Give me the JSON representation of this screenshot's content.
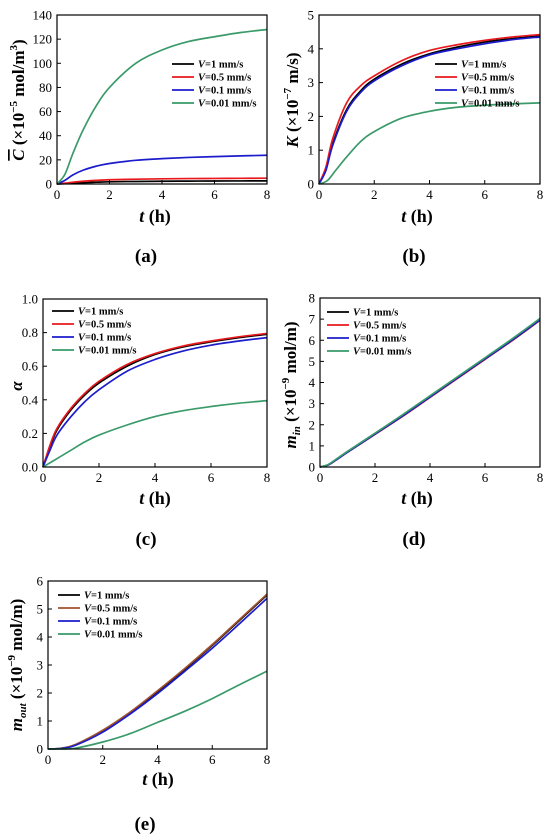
{
  "chart_data": [
    {
      "id": "a",
      "type": "line",
      "panel_label": "(a)",
      "xlabel": "t (h)",
      "ylabel": "C (×10⁻⁵ mol/m³)",
      "xlim": [
        0,
        8
      ],
      "ylim": [
        0,
        140
      ],
      "xticks": [
        "0",
        "2",
        "4",
        "6",
        "8"
      ],
      "yticks": [
        "0",
        "20",
        "40",
        "60",
        "80",
        "100",
        "120",
        "140"
      ],
      "legend": "top-right",
      "series": [
        {
          "name": "V=1 mm/s",
          "color": "#000000",
          "x": [
            0,
            0.3,
            0.6,
            1,
            1.5,
            2,
            3,
            4,
            5,
            6,
            7,
            8
          ],
          "y": [
            0,
            0.3,
            0.7,
            1.1,
            1.5,
            1.8,
            2.1,
            2.3,
            2.4,
            2.5,
            2.55,
            2.6
          ]
        },
        {
          "name": "V=0.5 mm/s",
          "color": "#e8191d",
          "x": [
            0,
            0.3,
            0.6,
            1,
            1.5,
            2,
            3,
            4,
            5,
            6,
            7,
            8
          ],
          "y": [
            0,
            0.6,
            1.5,
            2.3,
            3.0,
            3.5,
            4.0,
            4.3,
            4.5,
            4.6,
            4.7,
            4.8
          ]
        },
        {
          "name": "V=0.1 mm/s",
          "color": "#1c1ccc",
          "x": [
            0,
            0.3,
            0.6,
            1,
            1.5,
            2,
            3,
            4,
            5,
            6,
            7,
            8
          ],
          "y": [
            0,
            3,
            7.5,
            11.5,
            14.8,
            17.0,
            19.6,
            21.0,
            22.0,
            22.7,
            23.3,
            23.8
          ]
        },
        {
          "name": "V=0.01 mm/s",
          "color": "#3a9a6a",
          "x": [
            0,
            0.3,
            0.6,
            1,
            1.5,
            2,
            3,
            4,
            5,
            6,
            7,
            8
          ],
          "y": [
            0,
            8,
            25,
            45,
            65,
            80,
            100,
            111,
            118,
            122,
            125.5,
            128
          ]
        }
      ]
    },
    {
      "id": "b",
      "type": "line",
      "panel_label": "(b)",
      "xlabel": "t (h)",
      "ylabel": "K (×10⁻⁷ m/s)",
      "xlim": [
        0,
        8
      ],
      "ylim": [
        0,
        5
      ],
      "xticks": [
        "0",
        "2",
        "4",
        "6",
        "8"
      ],
      "yticks": [
        "0",
        "1",
        "2",
        "3",
        "4",
        "5"
      ],
      "legend": "right",
      "series": [
        {
          "name": "V=1 mm/s",
          "color": "#000000",
          "x": [
            0,
            0.25,
            0.5,
            1,
            1.5,
            2,
            3,
            4,
            5,
            6,
            7,
            8
          ],
          "y": [
            0,
            0.45,
            1.2,
            2.2,
            2.75,
            3.1,
            3.55,
            3.85,
            4.05,
            4.2,
            4.3,
            4.38
          ]
        },
        {
          "name": "V=0.5 mm/s",
          "color": "#e8191d",
          "x": [
            0,
            0.25,
            0.5,
            1,
            1.5,
            2,
            3,
            4,
            5,
            6,
            7,
            8
          ],
          "y": [
            0,
            0.5,
            1.35,
            2.4,
            2.9,
            3.2,
            3.65,
            3.95,
            4.12,
            4.25,
            4.35,
            4.42
          ]
        },
        {
          "name": "V=0.1 mm/s",
          "color": "#1c1ccc",
          "x": [
            0,
            0.25,
            0.5,
            1,
            1.5,
            2,
            3,
            4,
            5,
            6,
            7,
            8
          ],
          "y": [
            0,
            0.4,
            1.15,
            2.15,
            2.7,
            3.05,
            3.5,
            3.82,
            4.0,
            4.15,
            4.27,
            4.35
          ]
        },
        {
          "name": "V=0.01 mm/s",
          "color": "#3a9a6a",
          "x": [
            0,
            0.3,
            0.6,
            1,
            1.5,
            2,
            3,
            4,
            5,
            6,
            7,
            8
          ],
          "y": [
            0,
            0.1,
            0.4,
            0.8,
            1.25,
            1.55,
            1.95,
            2.15,
            2.27,
            2.33,
            2.37,
            2.4
          ]
        }
      ]
    },
    {
      "id": "c",
      "type": "line",
      "panel_label": "(c)",
      "xlabel": "t (h)",
      "ylabel": "α",
      "xlim": [
        0,
        8
      ],
      "ylim": [
        0,
        1.0
      ],
      "xticks": [
        "0",
        "2",
        "4",
        "6",
        "8"
      ],
      "yticks": [
        "0.0",
        "0.2",
        "0.4",
        "0.6",
        "0.8",
        "1.0"
      ],
      "legend": "top-left",
      "series": [
        {
          "name": "V=1 mm/s",
          "color": "#000000",
          "x": [
            0,
            0.25,
            0.5,
            1,
            1.5,
            2,
            3,
            4,
            5,
            6,
            7,
            8
          ],
          "y": [
            0,
            0.12,
            0.22,
            0.34,
            0.43,
            0.5,
            0.6,
            0.67,
            0.715,
            0.745,
            0.77,
            0.79
          ]
        },
        {
          "name": "V=0.5 mm/s",
          "color": "#e8191d",
          "x": [
            0,
            0.25,
            0.5,
            1,
            1.5,
            2,
            3,
            4,
            5,
            6,
            7,
            8
          ],
          "y": [
            0,
            0.13,
            0.23,
            0.35,
            0.44,
            0.51,
            0.61,
            0.675,
            0.72,
            0.75,
            0.775,
            0.795
          ]
        },
        {
          "name": "V=0.1 mm/s",
          "color": "#1c1ccc",
          "x": [
            0,
            0.25,
            0.5,
            1,
            1.5,
            2,
            3,
            4,
            5,
            6,
            7,
            8
          ],
          "y": [
            0,
            0.1,
            0.19,
            0.3,
            0.39,
            0.46,
            0.57,
            0.64,
            0.69,
            0.725,
            0.75,
            0.77
          ]
        },
        {
          "name": "V=0.01 mm/s",
          "color": "#3a9a6a",
          "x": [
            0,
            0.3,
            0.6,
            1,
            1.5,
            2,
            3,
            4,
            5,
            6,
            7,
            8
          ],
          "y": [
            0,
            0.03,
            0.06,
            0.1,
            0.15,
            0.19,
            0.25,
            0.3,
            0.335,
            0.36,
            0.38,
            0.395
          ]
        }
      ]
    },
    {
      "id": "d",
      "type": "line",
      "panel_label": "(d)",
      "xlabel": "t (h)",
      "ylabel": "m_in (×10⁻⁹ mol/m)",
      "xlim": [
        0,
        8
      ],
      "ylim": [
        0,
        8
      ],
      "xticks": [
        "0",
        "2",
        "4",
        "6",
        "8"
      ],
      "yticks": [
        "0",
        "1",
        "2",
        "3",
        "4",
        "5",
        "6",
        "7",
        "8"
      ],
      "legend": "top-left",
      "series": [
        {
          "name": "V=1 mm/s",
          "color": "#000000",
          "x": [
            0,
            0.3,
            0.6,
            1,
            2,
            3,
            4,
            5,
            6,
            7,
            8
          ],
          "y": [
            0,
            0.1,
            0.35,
            0.7,
            1.55,
            2.4,
            3.3,
            4.2,
            5.1,
            6.0,
            6.95
          ]
        },
        {
          "name": "V=0.5 mm/s",
          "color": "#e8191d",
          "x": [
            0,
            0.3,
            0.6,
            1,
            2,
            3,
            4,
            5,
            6,
            7,
            8
          ],
          "y": [
            0,
            0.1,
            0.35,
            0.7,
            1.55,
            2.4,
            3.3,
            4.2,
            5.1,
            6.0,
            6.95
          ]
        },
        {
          "name": "V=0.1 mm/s",
          "color": "#1c1ccc",
          "x": [
            0,
            0.3,
            0.6,
            1,
            2,
            3,
            4,
            5,
            6,
            7,
            8
          ],
          "y": [
            0,
            0.1,
            0.35,
            0.7,
            1.56,
            2.42,
            3.32,
            4.22,
            5.12,
            6.02,
            6.97
          ]
        },
        {
          "name": "V=0.01 mm/s",
          "color": "#3a9a6a",
          "x": [
            0,
            0.3,
            0.6,
            1,
            2,
            3,
            4,
            5,
            6,
            7,
            8
          ],
          "y": [
            0,
            0.12,
            0.38,
            0.74,
            1.6,
            2.47,
            3.37,
            4.27,
            5.17,
            6.08,
            7.03
          ]
        }
      ]
    },
    {
      "id": "e",
      "type": "line",
      "panel_label": "(e)",
      "xlabel": "t (h)",
      "ylabel": "m_out (×10⁻⁹ mol/m)",
      "xlim": [
        0,
        8
      ],
      "ylim": [
        0,
        6
      ],
      "xticks": [
        "0",
        "2",
        "4",
        "6",
        "8"
      ],
      "yticks": [
        "0",
        "1",
        "2",
        "3",
        "4",
        "5",
        "6"
      ],
      "legend": "top-left",
      "series": [
        {
          "name": "V=1 mm/s",
          "color": "#000000",
          "x": [
            0,
            0.5,
            1,
            2,
            3,
            4,
            5,
            6,
            7,
            8
          ],
          "y": [
            0,
            0.03,
            0.15,
            0.65,
            1.3,
            2.05,
            2.85,
            3.7,
            4.6,
            5.5
          ]
        },
        {
          "name": "V=0.5 mm/s",
          "color": "#a0522d",
          "x": [
            0,
            0.5,
            1,
            2,
            3,
            4,
            5,
            6,
            7,
            8
          ],
          "y": [
            0,
            0.03,
            0.16,
            0.67,
            1.32,
            2.08,
            2.88,
            3.73,
            4.63,
            5.53
          ]
        },
        {
          "name": "V=0.1 mm/s",
          "color": "#1c1ccc",
          "x": [
            0,
            0.5,
            1,
            2,
            3,
            4,
            5,
            6,
            7,
            8
          ],
          "y": [
            0,
            0.02,
            0.13,
            0.6,
            1.25,
            1.98,
            2.78,
            3.6,
            4.48,
            5.38
          ]
        },
        {
          "name": "V=0.01 mm/s",
          "color": "#3a9a6a",
          "x": [
            0,
            0.5,
            1,
            2,
            3,
            4,
            5,
            6,
            7,
            8
          ],
          "y": [
            0,
            0.0,
            0.03,
            0.25,
            0.55,
            0.95,
            1.35,
            1.8,
            2.3,
            2.78
          ]
        }
      ]
    }
  ]
}
